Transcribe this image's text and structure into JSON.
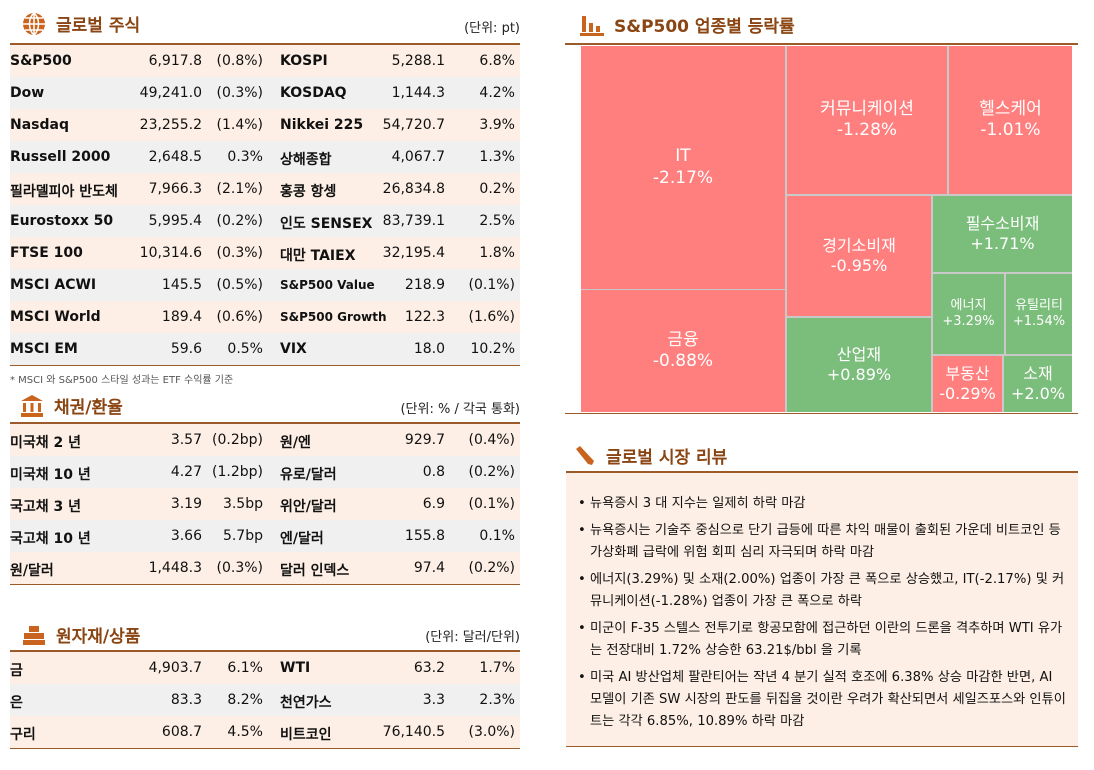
{
  "global_stocks": {
    "title": "글로벌 주식",
    "unit": "(단위: pt)",
    "icon": "globe-icon",
    "rows": [
      [
        "S&P500",
        "6,917.8",
        "(0.8%)",
        "KOSPI",
        "5,288.1",
        "6.8%"
      ],
      [
        "Dow",
        "49,241.0",
        "(0.3%)",
        "KOSDAQ",
        "1,144.3",
        "4.2%"
      ],
      [
        "Nasdaq",
        "23,255.2",
        "(1.4%)",
        "Nikkei 225",
        "54,720.7",
        "3.9%"
      ],
      [
        "Russell 2000",
        "2,648.5",
        "0.3%",
        "상해종합",
        "4,067.7",
        "1.3%"
      ],
      [
        "필라델피아 반도체",
        "7,966.3",
        "(2.1%)",
        "홍콩 항셍",
        "26,834.8",
        "0.2%"
      ],
      [
        "Eurostoxx 50",
        "5,995.4",
        "(0.2%)",
        "인도 SENSEX",
        "83,739.1",
        "2.5%"
      ],
      [
        "FTSE 100",
        "10,314.6",
        "(0.3%)",
        "대만 TAIEX",
        "32,195.4",
        "1.8%"
      ],
      [
        "MSCI ACWI",
        "145.5",
        "(0.5%)",
        "S&P500 Value",
        "218.9",
        "(0.1%)"
      ],
      [
        "MSCI World",
        "189.4",
        "(0.6%)",
        "S&P500 Growth",
        "122.3",
        "(1.6%)"
      ],
      [
        "MSCI EM",
        "59.6",
        "0.5%",
        "VIX",
        "18.0",
        "10.2%"
      ]
    ],
    "footnote": "* MSCI 와 S&P500 스타일 성과는 ETF 수익률 기준"
  },
  "bonds_fx": {
    "title": "채권/환율",
    "unit": "(단위: % / 각국 통화)",
    "icon": "bank-icon",
    "rows": [
      [
        "미국채 2 년",
        "3.57",
        "(0.2bp)",
        "원/엔",
        "929.7",
        "(0.4%)"
      ],
      [
        "미국채 10 년",
        "4.27",
        "(1.2bp)",
        "유로/달러",
        "0.8",
        "(0.2%)"
      ],
      [
        "국고채 3 년",
        "3.19",
        "3.5bp",
        "위안/달러",
        "6.9",
        "(0.1%)"
      ],
      [
        "국고채 10 년",
        "3.66",
        "5.7bp",
        "엔/달러",
        "155.8",
        "0.1%"
      ],
      [
        "원/달러",
        "1,448.3",
        "(0.3%)",
        "달러 인덱스",
        "97.4",
        "(0.2%)"
      ]
    ]
  },
  "commodities": {
    "title": "원자재/상품",
    "unit": "(단위: 달러/단위)",
    "icon": "gold-bars-icon",
    "rows": [
      [
        "금",
        "4,903.7",
        "6.1%",
        "WTI",
        "63.2",
        "1.7%"
      ],
      [
        "은",
        "83.3",
        "8.2%",
        "천연가스",
        "3.3",
        "2.3%"
      ],
      [
        "구리",
        "608.7",
        "4.5%",
        "비트코인",
        "76,140.5",
        "(3.0%)"
      ]
    ]
  },
  "sector": {
    "title": "S&P500 업종별 등락률",
    "icon": "bar-chart-icon"
  },
  "chart_data": {
    "type": "treemap",
    "colors": {
      "negative": "#ff7f7f",
      "positive": "#7bbd7b"
    },
    "sectors": [
      {
        "name": "IT",
        "label": "-2.17%",
        "value": -2.17
      },
      {
        "name": "금융",
        "label": "-0.88%",
        "value": -0.88
      },
      {
        "name": "커뮤니케이션",
        "label": "-1.28%",
        "value": -1.28
      },
      {
        "name": "헬스케어",
        "label": "-1.01%",
        "value": -1.01
      },
      {
        "name": "경기소비재",
        "label": "-0.95%",
        "value": -0.95
      },
      {
        "name": "필수소비재",
        "label": "+1.71%",
        "value": 1.71
      },
      {
        "name": "에너지",
        "label": "+3.29%",
        "value": 3.29
      },
      {
        "name": "유틸리티",
        "label": "+1.54%",
        "value": 1.54
      },
      {
        "name": "산업재",
        "label": "+0.89%",
        "value": 0.89
      },
      {
        "name": "부동산",
        "label": "-0.29%",
        "value": -0.29
      },
      {
        "name": "소재",
        "label": "+2.0%",
        "value": 2.0
      }
    ]
  },
  "review": {
    "title": "글로벌 시장 리뷰",
    "icon": "pen-icon",
    "items": [
      "뉴욕증시 3 대 지수는 일제히 하락 마감",
      "뉴욕증시는 기술주 중심으로 단기 급등에 따른 차익 매물이 출회된 가운데 비트코인 등 가상화폐 급락에 위험 회피 심리 자극되며 하락 마감",
      "에너지(3.29%) 및 소재(2.00%) 업종이 가장 큰 폭으로 상승했고, IT(-2.17%) 및 커뮤니케이션(-1.28%) 업종이 가장 큰 폭으로 하락",
      "미군이 F-35 스텔스 전투기로 항공모함에 접근하던 이란의 드론을 격추하며 WTI 유가는 전장대비 1.72% 상승한 63.21$/bbl 을 기록",
      "미국 AI 방산업체 팔란티어는 작년 4 분기 실적 호조에 6.38% 상승 마감한 반면, AI 모델이 기존 SW 시장의 판도를 뒤집을 것이란 우려가 확산되면서 세일즈포스와 인튜이트는 각각 6.85%, 10.89% 하락 마감"
    ]
  }
}
